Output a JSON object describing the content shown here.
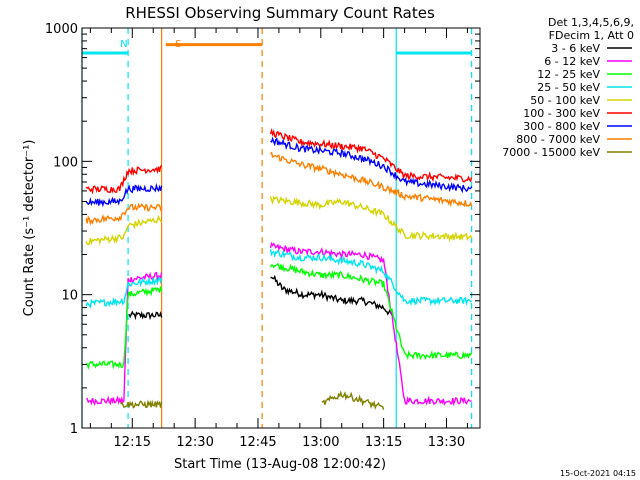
{
  "chart_data": {
    "type": "line",
    "title": "RHESSI Observing Summary Count Rates",
    "xlabel": "Start Time (13-Aug-08 12:00:42)",
    "ylabel": "Count Rate (s⁻¹ detector⁻¹)",
    "yscale": "log",
    "ylim": [
      1,
      1000
    ],
    "xlim": [
      "12:03",
      "13:38"
    ],
    "xticks": [
      "12:15",
      "12:30",
      "12:45",
      "13:00",
      "13:15",
      "13:30"
    ],
    "yticks": [
      "1",
      "10",
      "100",
      "1000"
    ],
    "legend_title": [
      "Det 1,3,4,5,6,9,",
      "FDecim 1, Att 0"
    ],
    "legend_position": "right",
    "timestamp": "15-Oct-2021 04:15",
    "annotations": [
      {
        "text": "N",
        "time": "12:13",
        "color": "#00e5ee"
      },
      {
        "text": "S",
        "time": "12:26",
        "color": "#ff7f00"
      }
    ],
    "markers": [
      {
        "kind": "night",
        "color": "#00e5ee",
        "style": "solid",
        "time": "12:03"
      },
      {
        "kind": "night",
        "color": "#00e5ee",
        "style": "dashed",
        "time": "12:14"
      },
      {
        "kind": "saa",
        "color": "#ff7f00",
        "style": "solid",
        "time": "12:22"
      },
      {
        "kind": "saa",
        "color": "#ff7f00",
        "style": "dashed",
        "time": "12:46"
      },
      {
        "kind": "night",
        "color": "#00e5ee",
        "style": "solid",
        "time": "13:18"
      },
      {
        "kind": "night",
        "color": "#00e5ee",
        "style": "dashed",
        "time": "13:36"
      }
    ],
    "bars": [
      {
        "color": "#00e5ee",
        "from": "12:03",
        "to": "12:14",
        "level": 650
      },
      {
        "color": "#ff7f00",
        "from": "12:23",
        "to": "12:46",
        "level": 750
      },
      {
        "color": "#00e5ee",
        "from": "13:18",
        "to": "13:36",
        "level": 650
      }
    ],
    "segments": [
      {
        "from": "12:04",
        "to": "12:22"
      },
      {
        "from": "12:48",
        "to": "13:36"
      }
    ],
    "series": [
      {
        "name": "3 - 6 keV",
        "color": "#000000",
        "x": [
          "12:04",
          "12:13",
          "12:14",
          "12:22",
          "12:48",
          "12:51",
          "12:56",
          "13:00",
          "13:05",
          "13:10",
          "13:15",
          "13:17",
          "13:20",
          "13:36"
        ],
        "y": [
          null,
          null,
          7,
          7,
          14,
          11,
          10,
          10,
          9,
          9,
          8,
          7,
          null,
          null
        ]
      },
      {
        "name": "6 - 12 keV",
        "color": "#ff00ff",
        "x": [
          "12:04",
          "12:13",
          "12:14",
          "12:22",
          "12:48",
          "12:55",
          "13:00",
          "13:05",
          "13:10",
          "13:15",
          "13:20",
          "13:36"
        ],
        "y": [
          1.6,
          1.6,
          13,
          14,
          23,
          21,
          21,
          20,
          20,
          18,
          1.6,
          1.6
        ]
      },
      {
        "name": "12 - 25 keV",
        "color": "#00ff00",
        "x": [
          "12:04",
          "12:08",
          "12:13",
          "12:14",
          "12:22",
          "12:48",
          "12:55",
          "13:00",
          "13:05",
          "13:10",
          "13:15",
          "13:20",
          "13:36"
        ],
        "y": [
          3,
          3,
          3,
          10,
          11,
          17,
          15,
          14,
          14,
          13,
          12,
          3.5,
          3.5
        ]
      },
      {
        "name": "25 - 50 keV",
        "color": "#00e5ee",
        "x": [
          "12:04",
          "12:13",
          "12:14",
          "12:22",
          "12:48",
          "12:55",
          "13:00",
          "13:05",
          "13:10",
          "13:15",
          "13:20",
          "13:36"
        ],
        "y": [
          8.5,
          9,
          12,
          13,
          21,
          19,
          19,
          18,
          17,
          15,
          9,
          9
        ]
      },
      {
        "name": "50 - 100 keV",
        "color": "#d4d400",
        "x": [
          "12:04",
          "12:13",
          "12:14",
          "12:22",
          "12:48",
          "12:55",
          "13:00",
          "13:05",
          "13:10",
          "13:15",
          "13:20",
          "13:36"
        ],
        "y": [
          25,
          27,
          33,
          37,
          52,
          49,
          47,
          50,
          45,
          40,
          28,
          27
        ]
      },
      {
        "name": "100 - 300 keV",
        "color": "#ff0000",
        "x": [
          "12:04",
          "12:12",
          "12:14",
          "12:22",
          "12:48",
          "12:55",
          "13:00",
          "13:05",
          "13:10",
          "13:15",
          "13:20",
          "13:36"
        ],
        "y": [
          62,
          62,
          85,
          88,
          165,
          140,
          135,
          130,
          125,
          105,
          78,
          74
        ]
      },
      {
        "name": "300 - 800 keV",
        "color": "#0000ff",
        "x": [
          "12:04",
          "12:12",
          "12:14",
          "12:22",
          "12:48",
          "12:55",
          "13:00",
          "13:05",
          "13:10",
          "13:15",
          "13:20",
          "13:36"
        ],
        "y": [
          49,
          50,
          62,
          63,
          145,
          125,
          120,
          115,
          105,
          92,
          70,
          62
        ]
      },
      {
        "name": "800 - 7000 keV",
        "color": "#ff7f00",
        "x": [
          "12:04",
          "12:12",
          "12:14",
          "12:22",
          "12:48",
          "12:55",
          "13:00",
          "13:05",
          "13:10",
          "13:15",
          "13:20",
          "13:36"
        ],
        "y": [
          36,
          38,
          45,
          45,
          112,
          95,
          88,
          80,
          72,
          64,
          55,
          48
        ]
      },
      {
        "name": "7000 - 15000 keV",
        "color": "#808000",
        "x": [
          "12:04",
          "12:12",
          "12:14",
          "12:22",
          "12:48",
          "13:00",
          "13:05",
          "13:10",
          "13:15",
          "13:20",
          "13:36"
        ],
        "y": [
          null,
          1.5,
          1.5,
          1.5,
          null,
          1.5,
          1.8,
          1.6,
          1.4,
          null,
          null
        ]
      }
    ]
  }
}
